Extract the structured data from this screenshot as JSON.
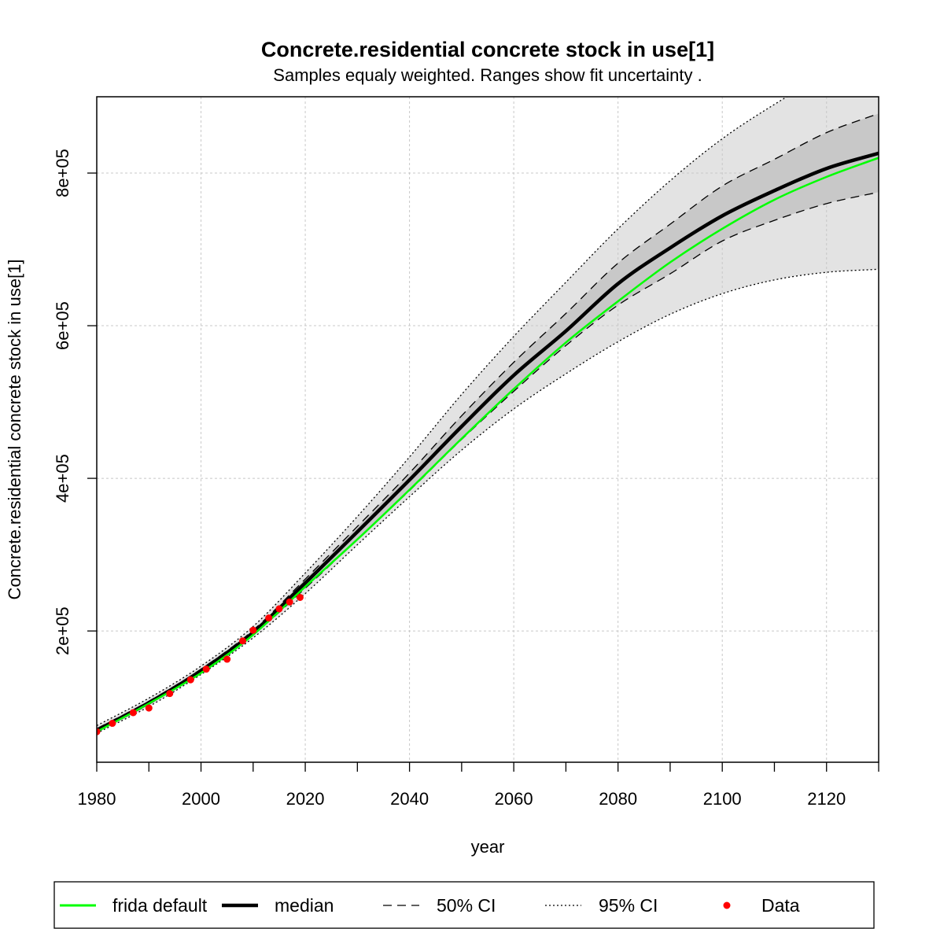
{
  "chart_data": {
    "type": "line",
    "title": "Concrete.residential concrete stock in use[1]",
    "subtitle": "Samples equaly weighted. Ranges show  fit uncertainty .",
    "xlabel": "year",
    "ylabel": "Concrete.residential concrete stock in use[1]",
    "xlim": [
      1980,
      2130
    ],
    "ylim": [
      28000,
      900000
    ],
    "x_ticks": [
      1980,
      2000,
      2020,
      2040,
      2060,
      2080,
      2100,
      2120
    ],
    "x_tick_labels": [
      "1980",
      "2000",
      "2020",
      "2040",
      "2060",
      "2080",
      "2100",
      "2120"
    ],
    "y_ticks": [
      200000,
      400000,
      600000,
      800000
    ],
    "y_tick_labels": [
      "2e+05",
      "4e+05",
      "6e+05",
      "8e+05"
    ],
    "grid": true,
    "legend_position": "bottom",
    "colors": {
      "frida_default": "#00ff00",
      "median": "#000000",
      "data": "#ff0000",
      "band95": "#e3e3e3",
      "band50": "#c8c8c8",
      "grid": "#c8c8c8"
    },
    "x": [
      1980,
      1990,
      2000,
      2010,
      2020,
      2030,
      2040,
      2050,
      2060,
      2070,
      2080,
      2090,
      2100,
      2110,
      2120,
      2130
    ],
    "series": [
      {
        "name": "frida default",
        "style": "solid-green",
        "values": [
          68000,
          105000,
          145000,
          195000,
          258000,
          320000,
          385000,
          452000,
          517000,
          578000,
          632000,
          683000,
          727000,
          765000,
          795000,
          820000
        ]
      },
      {
        "name": "median",
        "style": "solid-black-thick",
        "values": [
          70000,
          106000,
          148000,
          198000,
          263000,
          330000,
          398000,
          468000,
          535000,
          593000,
          655000,
          702000,
          744000,
          777000,
          806000,
          826000
        ]
      },
      {
        "name": "50% CI",
        "style": "dashed",
        "upper": [
          72000,
          108000,
          150000,
          201000,
          268000,
          337000,
          407000,
          482000,
          552000,
          616000,
          682000,
          733000,
          783000,
          818000,
          853000,
          878000
        ],
        "lower": [
          68000,
          104000,
          146000,
          195000,
          256000,
          320000,
          384000,
          451000,
          514000,
          574000,
          627000,
          668000,
          711000,
          738000,
          760000,
          775000
        ]
      },
      {
        "name": "95% CI",
        "style": "dotted",
        "upper": [
          76000,
          112000,
          154000,
          206000,
          276000,
          350000,
          428000,
          510000,
          586000,
          657000,
          727000,
          790000,
          845000,
          890000,
          930000,
          965000
        ],
        "lower": [
          66000,
          101000,
          143000,
          191000,
          249000,
          313000,
          376000,
          437000,
          491000,
          537000,
          579000,
          615000,
          642000,
          660000,
          670000,
          674000
        ]
      },
      {
        "name": "Data",
        "style": "points",
        "x": [
          1980,
          1983,
          1987,
          1990,
          1994,
          1998,
          2001,
          2005,
          2008,
          2010,
          2013,
          2015,
          2017,
          2019
        ],
        "values": [
          68000,
          79000,
          93000,
          99000,
          118000,
          136000,
          150000,
          163000,
          187000,
          201000,
          217000,
          229000,
          238000,
          244000
        ]
      }
    ]
  },
  "legend": {
    "items": [
      {
        "label": "frida default"
      },
      {
        "label": "median"
      },
      {
        "label": "50% CI"
      },
      {
        "label": "95% CI"
      },
      {
        "label": "Data"
      }
    ]
  }
}
